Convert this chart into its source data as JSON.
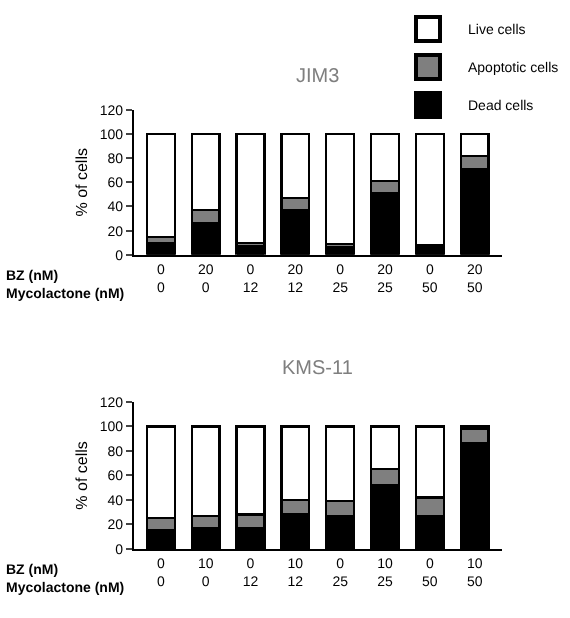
{
  "chart_data": [
    {
      "type": "bar",
      "title": "JIM3",
      "stacked": true,
      "ylabel": "% of cells",
      "ylim": [
        0,
        120
      ],
      "yticks": [
        0,
        20,
        40,
        60,
        80,
        100,
        120
      ],
      "legend": "top right",
      "categories": [
        "0\n0",
        "20\n0",
        "0\n12",
        "20\n12",
        "0\n25",
        "20\n25",
        "0\n50",
        "20\n50"
      ],
      "annotations": [
        "BZ (nM)\nMycolactone (nM)"
      ],
      "series": [
        {
          "name": "Dead cells",
          "color": "#000000",
          "values": [
            10,
            26,
            7,
            37,
            6,
            51,
            6,
            71
          ]
        },
        {
          "name": "Apoptotic cells",
          "color": "#7f7f7f",
          "values": [
            5,
            11,
            3,
            10,
            3,
            10,
            2,
            11
          ]
        },
        {
          "name": "Live cells",
          "color": "#ffffff",
          "values": [
            85,
            63,
            90,
            53,
            91,
            39,
            92,
            18
          ]
        }
      ]
    },
    {
      "type": "bar",
      "title": "KMS-11",
      "stacked": true,
      "ylabel": "% of cells",
      "ylim": [
        0,
        120
      ],
      "yticks": [
        0,
        20,
        40,
        60,
        80,
        100,
        120
      ],
      "categories": [
        "0\n0",
        "10\n0",
        "0\n12",
        "10\n12",
        "0\n25",
        "10\n25",
        "0\n50",
        "10\n50"
      ],
      "annotations": [
        "BZ (nM)\nMycolactone (nM)"
      ],
      "series": [
        {
          "color": "#000000",
          "values": [
            15,
            17,
            17,
            28,
            27,
            52,
            27,
            86
          ]
        },
        {
          "color": "#7f7f7f",
          "values": [
            10,
            10,
            11,
            12,
            12,
            13,
            15,
            12
          ]
        },
        {
          "color": "#ffffff",
          "values": [
            75,
            73,
            72,
            60,
            61,
            35,
            58,
            2
          ]
        }
      ]
    }
  ]
}
